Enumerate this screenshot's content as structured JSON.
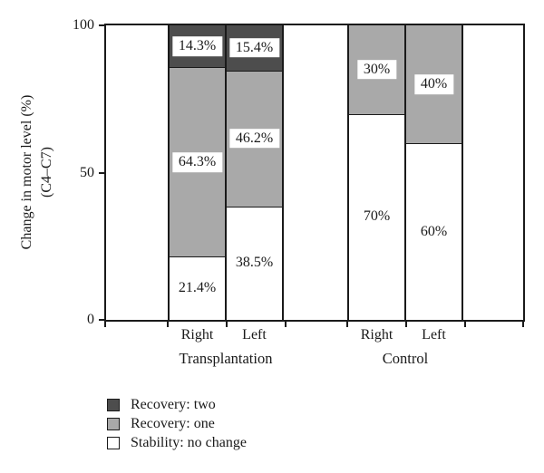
{
  "figure": {
    "background": "#ffffff",
    "ink_color": "#1a1a1a"
  },
  "chart_data": {
    "type": "bar",
    "stacked": true,
    "orientation": "vertical",
    "grid": false,
    "y_axis": {
      "label_line1": "Change in motor level (%)",
      "label_line2": "(C4–C7)",
      "min": 0,
      "max": 100,
      "ticks": [
        {
          "value": 100,
          "label": "100"
        },
        {
          "value": 50,
          "label": "50"
        },
        {
          "value": 0,
          "label": "0"
        }
      ]
    },
    "series_colors": {
      "Recovery: two": "#4d4d4d",
      "Recovery: one": "#a9a9a9",
      "Stability: no change": "#ffffff"
    },
    "groups": [
      {
        "label": "Transplantation",
        "bars": [
          {
            "label": "Right",
            "segments": [
              {
                "series": "Stability: no change",
                "value": 21.4,
                "text": "21.4%"
              },
              {
                "series": "Recovery: one",
                "value": 64.3,
                "text": "64.3%"
              },
              {
                "series": "Recovery: two",
                "value": 14.3,
                "text": "14.3%"
              }
            ]
          },
          {
            "label": "Left",
            "segments": [
              {
                "series": "Stability: no change",
                "value": 38.5,
                "text": "38.5%"
              },
              {
                "series": "Recovery: one",
                "value": 46.2,
                "text": "46.2%"
              },
              {
                "series": "Recovery: two",
                "value": 15.4,
                "text": "15.4%"
              }
            ]
          }
        ]
      },
      {
        "label": "Control",
        "bars": [
          {
            "label": "Right",
            "segments": [
              {
                "series": "Stability: no change",
                "value": 70,
                "text": "70%"
              },
              {
                "series": "Recovery: one",
                "value": 30,
                "text": "30%"
              }
            ]
          },
          {
            "label": "Left",
            "segments": [
              {
                "series": "Stability: no change",
                "value": 60,
                "text": "60%"
              },
              {
                "series": "Recovery: one",
                "value": 40,
                "text": "40%"
              }
            ]
          }
        ]
      }
    ],
    "legend": [
      {
        "label": "Recovery: two",
        "color": "#4d4d4d"
      },
      {
        "label": "Recovery: one",
        "color": "#a9a9a9"
      },
      {
        "label": "Stability: no change",
        "color": "#ffffff"
      }
    ],
    "legend_position": "bottom-left"
  }
}
